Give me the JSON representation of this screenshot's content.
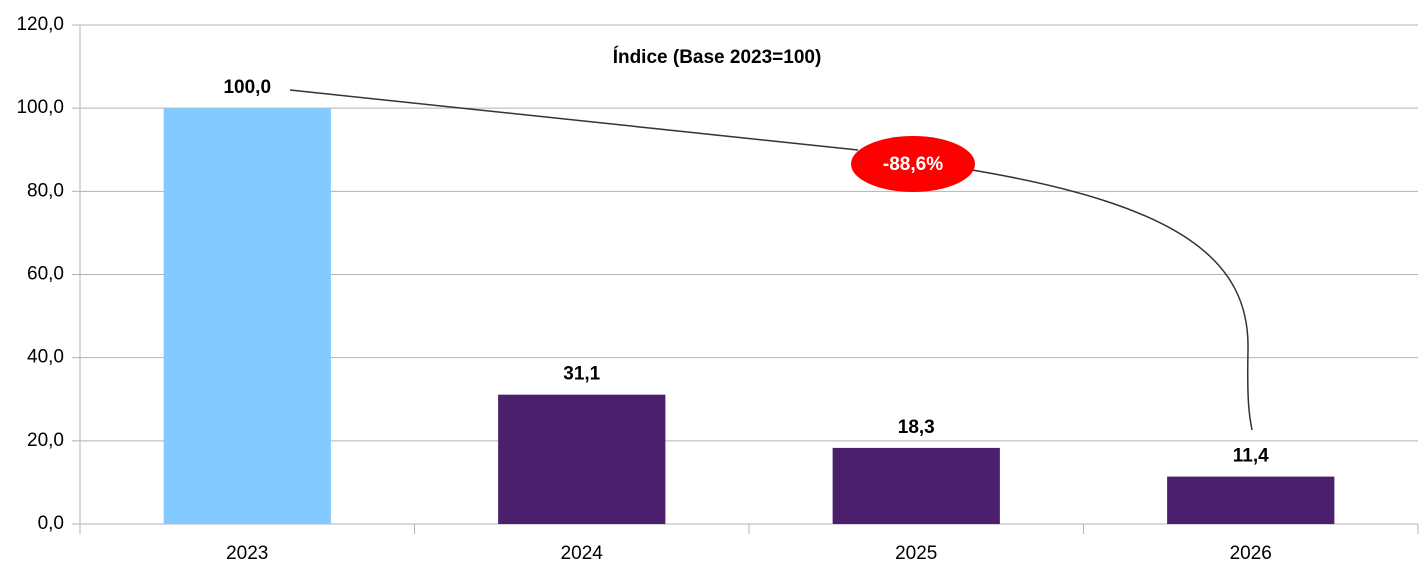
{
  "chart_data": {
    "type": "bar",
    "title": "Índice (Base 2023=100)",
    "categories": [
      "2023",
      "2024",
      "2025",
      "2026"
    ],
    "values": [
      100.0,
      31.1,
      18.3,
      11.4
    ],
    "value_labels": [
      "100,0",
      "31,1",
      "18,3",
      "11,4"
    ],
    "colors": [
      "#82caff",
      "#4b1f6b",
      "#4b1f6b",
      "#4b1f6b"
    ],
    "ylim": [
      0,
      120
    ],
    "yticks": [
      {
        "value": 0,
        "label": "0,0"
      },
      {
        "value": 20,
        "label": "20,0"
      },
      {
        "value": 40,
        "label": "40,0"
      },
      {
        "value": 60,
        "label": "60,0"
      },
      {
        "value": 80,
        "label": "80,0"
      },
      {
        "value": 100,
        "label": "100,0"
      },
      {
        "value": 120,
        "label": "120,0"
      }
    ],
    "grid": true,
    "annotation": "-88,6%"
  }
}
